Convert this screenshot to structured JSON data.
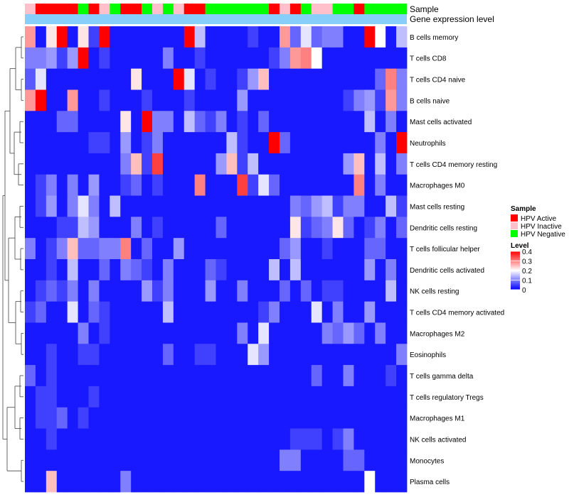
{
  "chart_data": {
    "type": "heatmap",
    "annotation_titles": [
      "Sample",
      "Gene expression level"
    ],
    "rows": [
      "B cells memory",
      "T cells CD8",
      "T cells CD4 naive",
      "B cells naive",
      "Mast cells activated",
      "Neutrophils",
      "T cells CD4 memory resting",
      "Macrophages M0",
      "Mast cells resting",
      "Dendritic cells resting",
      "T cells follicular helper",
      "Dendritic cells activated",
      "NK cells resting",
      "T cells CD4 memory activated",
      "Macrophages M2",
      "Eosinophils",
      "T cells gamma delta",
      "T cells regulatory  Tregs",
      "Macrophages M1",
      "NK cells activated",
      "Monocytes",
      "Plasma cells"
    ],
    "sample_groups": [
      "HPV Inactive",
      "HPV Active",
      "HPV Active",
      "HPV Active",
      "HPV Active",
      "HPV Negative",
      "HPV Active",
      "HPV Inactive",
      "HPV Negative",
      "HPV Active",
      "HPV Active",
      "HPV Negative",
      "HPV Inactive",
      "HPV Negative",
      "HPV Inactive",
      "HPV Active",
      "HPV Active",
      "HPV Negative",
      "HPV Negative",
      "HPV Negative",
      "HPV Negative",
      "HPV Negative",
      "HPV Negative",
      "HPV Active",
      "HPV Inactive",
      "HPV Active",
      "HPV Negative",
      "HPV Inactive",
      "HPV Inactive",
      "HPV Negative",
      "HPV Negative",
      "HPV Active",
      "HPV Negative",
      "HPV Negative",
      "HPV Negative",
      "HPV Negative"
    ],
    "values": [
      [
        0.28,
        0.02,
        0.22,
        0.4,
        0.02,
        0.22,
        0.05,
        0.4,
        0.02,
        0.02,
        0.02,
        0.02,
        0.02,
        0.02,
        0.02,
        0.4,
        0.15,
        0.02,
        0.02,
        0.02,
        0.02,
        0.05,
        0.02,
        0.02,
        0.28,
        0.08,
        0.18,
        0.08,
        0.1,
        0.1,
        0.02,
        0.02,
        0.4,
        0.2,
        0.02,
        0.15
      ],
      [
        0.1,
        0.1,
        0.12,
        0.05,
        0.12,
        0.4,
        0.02,
        0.05,
        0.02,
        0.02,
        0.02,
        0.02,
        0.02,
        0.1,
        0.02,
        0.02,
        0.05,
        0.02,
        0.02,
        0.02,
        0.02,
        0.02,
        0.02,
        0.05,
        0.1,
        0.28,
        0.3,
        0.2,
        0.02,
        0.02,
        0.02,
        0.02,
        0.02,
        0.02,
        0.02,
        0.02
      ],
      [
        0.07,
        0.18,
        0.02,
        0.02,
        0.02,
        0.02,
        0.02,
        0.02,
        0.02,
        0.02,
        0.22,
        0.02,
        0.02,
        0.02,
        0.4,
        0.18,
        0.02,
        0.05,
        0.02,
        0.02,
        0.05,
        0.12,
        0.25,
        0.02,
        0.02,
        0.02,
        0.02,
        0.02,
        0.02,
        0.02,
        0.02,
        0.02,
        0.02,
        0.08,
        0.3,
        0.1
      ],
      [
        0.28,
        0.4,
        0.02,
        0.02,
        0.28,
        0.02,
        0.02,
        0.05,
        0.02,
        0.02,
        0.02,
        0.05,
        0.02,
        0.02,
        0.02,
        0.05,
        0.02,
        0.02,
        0.02,
        0.02,
        0.12,
        0.02,
        0.02,
        0.02,
        0.02,
        0.02,
        0.02,
        0.02,
        0.02,
        0.02,
        0.05,
        0.1,
        0.12,
        0.05,
        0.28,
        0.1
      ],
      [
        0.02,
        0.02,
        0.02,
        0.08,
        0.08,
        0.02,
        0.02,
        0.02,
        0.02,
        0.22,
        0.02,
        0.4,
        0.1,
        0.1,
        0.02,
        0.15,
        0.08,
        0.05,
        0.1,
        0.02,
        0.05,
        0.02,
        0.08,
        0.02,
        0.02,
        0.02,
        0.02,
        0.02,
        0.02,
        0.02,
        0.02,
        0.02,
        0.15,
        0.02,
        0.1,
        0.02
      ],
      [
        0.02,
        0.02,
        0.02,
        0.02,
        0.02,
        0.02,
        0.05,
        0.05,
        0.02,
        0.12,
        0.02,
        0.05,
        0.1,
        0.02,
        0.02,
        0.02,
        0.02,
        0.02,
        0.02,
        0.15,
        0.05,
        0.02,
        0.02,
        0.4,
        0.08,
        0.02,
        0.02,
        0.02,
        0.02,
        0.02,
        0.02,
        0.02,
        0.02,
        0.1,
        0.02,
        0.4
      ],
      [
        0.02,
        0.02,
        0.02,
        0.02,
        0.02,
        0.02,
        0.02,
        0.02,
        0.02,
        0.1,
        0.25,
        0.05,
        0.35,
        0.02,
        0.02,
        0.02,
        0.02,
        0.02,
        0.12,
        0.25,
        0.05,
        0.15,
        0.02,
        0.02,
        0.02,
        0.02,
        0.02,
        0.02,
        0.02,
        0.02,
        0.12,
        0.25,
        0.02,
        0.15,
        0.02,
        0.1
      ],
      [
        0.02,
        0.05,
        0.1,
        0.02,
        0.1,
        0.02,
        0.12,
        0.02,
        0.02,
        0.05,
        0.08,
        0.02,
        0.05,
        0.02,
        0.02,
        0.02,
        0.3,
        0.02,
        0.02,
        0.02,
        0.35,
        0.05,
        0.18,
        0.08,
        0.02,
        0.02,
        0.02,
        0.02,
        0.02,
        0.02,
        0.02,
        0.3,
        0.02,
        0.1,
        0.02,
        0.02
      ],
      [
        0.02,
        0.05,
        0.12,
        0.02,
        0.1,
        0.18,
        0.1,
        0.02,
        0.15,
        0.02,
        0.02,
        0.02,
        0.02,
        0.02,
        0.02,
        0.02,
        0.02,
        0.02,
        0.02,
        0.02,
        0.02,
        0.02,
        0.02,
        0.02,
        0.02,
        0.1,
        0.08,
        0.12,
        0.15,
        0.05,
        0.1,
        0.1,
        0.02,
        0.02,
        0.15,
        0.05
      ],
      [
        0.02,
        0.02,
        0.02,
        0.05,
        0.05,
        0.15,
        0.12,
        0.02,
        0.02,
        0.02,
        0.1,
        0.02,
        0.05,
        0.02,
        0.02,
        0.02,
        0.02,
        0.02,
        0.08,
        0.02,
        0.02,
        0.02,
        0.02,
        0.02,
        0.02,
        0.22,
        0.05,
        0.08,
        0.1,
        0.22,
        0.08,
        0.02,
        0.05,
        0.1,
        0.02,
        0.08
      ],
      [
        0.1,
        0.02,
        0.05,
        0.1,
        0.25,
        0.08,
        0.08,
        0.1,
        0.1,
        0.3,
        0.02,
        0.08,
        0.02,
        0.02,
        0.12,
        0.02,
        0.02,
        0.02,
        0.02,
        0.02,
        0.02,
        0.02,
        0.02,
        0.02,
        0.08,
        0.12,
        0.02,
        0.02,
        0.05,
        0.02,
        0.02,
        0.02,
        0.08,
        0.08,
        0.02,
        0.02
      ],
      [
        0.02,
        0.02,
        0.05,
        0.02,
        0.15,
        0.02,
        0.02,
        0.08,
        0.02,
        0.1,
        0.08,
        0.05,
        0.02,
        0.1,
        0.02,
        0.02,
        0.02,
        0.08,
        0.05,
        0.02,
        0.02,
        0.02,
        0.02,
        0.15,
        0.02,
        0.15,
        0.02,
        0.02,
        0.02,
        0.02,
        0.02,
        0.02,
        0.12,
        0.02,
        0.1,
        0.02
      ],
      [
        0.02,
        0.05,
        0.08,
        0.05,
        0.1,
        0.02,
        0.1,
        0.02,
        0.02,
        0.02,
        0.02,
        0.12,
        0.05,
        0.1,
        0.02,
        0.02,
        0.02,
        0.12,
        0.02,
        0.02,
        0.1,
        0.02,
        0.02,
        0.02,
        0.08,
        0.02,
        0.08,
        0.02,
        0.05,
        0.05,
        0.02,
        0.02,
        0.02,
        0.02,
        0.15,
        0.02
      ],
      [
        0.05,
        0.08,
        0.02,
        0.02,
        0.18,
        0.02,
        0.08,
        0.05,
        0.02,
        0.02,
        0.02,
        0.02,
        0.02,
        0.15,
        0.02,
        0.02,
        0.02,
        0.02,
        0.02,
        0.02,
        0.02,
        0.02,
        0.05,
        0.1,
        0.02,
        0.02,
        0.02,
        0.18,
        0.02,
        0.1,
        0.02,
        0.02,
        0.12,
        0.02,
        0.02,
        0.02
      ],
      [
        0.02,
        0.02,
        0.02,
        0.02,
        0.02,
        0.1,
        0.02,
        0.05,
        0.02,
        0.02,
        0.02,
        0.02,
        0.02,
        0.02,
        0.02,
        0.02,
        0.02,
        0.02,
        0.02,
        0.02,
        0.1,
        0.02,
        0.18,
        0.02,
        0.02,
        0.02,
        0.02,
        0.02,
        0.1,
        0.08,
        0.12,
        0.08,
        0.02,
        0.1,
        0.02,
        0.02
      ],
      [
        0.02,
        0.02,
        0.05,
        0.02,
        0.02,
        0.05,
        0.05,
        0.02,
        0.02,
        0.02,
        0.02,
        0.02,
        0.02,
        0.08,
        0.02,
        0.02,
        0.05,
        0.05,
        0.02,
        0.02,
        0.02,
        0.18,
        0.12,
        0.02,
        0.02,
        0.02,
        0.02,
        0.02,
        0.02,
        0.02,
        0.02,
        0.02,
        0.02,
        0.02,
        0.02,
        0.1
      ],
      [
        0.08,
        0.02,
        0.05,
        0.02,
        0.02,
        0.02,
        0.02,
        0.02,
        0.02,
        0.02,
        0.02,
        0.02,
        0.02,
        0.02,
        0.02,
        0.02,
        0.02,
        0.02,
        0.02,
        0.02,
        0.02,
        0.02,
        0.02,
        0.02,
        0.02,
        0.02,
        0.02,
        0.08,
        0.02,
        0.02,
        0.1,
        0.02,
        0.02,
        0.02,
        0.05,
        0.02
      ],
      [
        0.02,
        0.05,
        0.05,
        0.02,
        0.02,
        0.02,
        0.05,
        0.02,
        0.02,
        0.02,
        0.02,
        0.02,
        0.02,
        0.02,
        0.02,
        0.02,
        0.02,
        0.02,
        0.02,
        0.02,
        0.02,
        0.02,
        0.02,
        0.02,
        0.02,
        0.02,
        0.02,
        0.02,
        0.02,
        0.02,
        0.02,
        0.02,
        0.02,
        0.02,
        0.02,
        0.02
      ],
      [
        0.02,
        0.05,
        0.05,
        0.08,
        0.02,
        0.05,
        0.02,
        0.02,
        0.02,
        0.02,
        0.02,
        0.02,
        0.02,
        0.02,
        0.02,
        0.02,
        0.02,
        0.02,
        0.02,
        0.02,
        0.02,
        0.02,
        0.02,
        0.02,
        0.02,
        0.02,
        0.02,
        0.02,
        0.02,
        0.02,
        0.02,
        0.02,
        0.02,
        0.02,
        0.02,
        0.02
      ],
      [
        0.02,
        0.02,
        0.05,
        0.02,
        0.02,
        0.02,
        0.02,
        0.02,
        0.02,
        0.02,
        0.02,
        0.02,
        0.02,
        0.02,
        0.02,
        0.02,
        0.02,
        0.02,
        0.02,
        0.02,
        0.02,
        0.02,
        0.02,
        0.02,
        0.02,
        0.05,
        0.05,
        0.05,
        0.02,
        0.05,
        0.1,
        0.02,
        0.02,
        0.02,
        0.02,
        0.02
      ],
      [
        0.02,
        0.02,
        0.02,
        0.02,
        0.02,
        0.02,
        0.02,
        0.02,
        0.02,
        0.02,
        0.02,
        0.02,
        0.02,
        0.02,
        0.02,
        0.02,
        0.02,
        0.02,
        0.02,
        0.02,
        0.02,
        0.02,
        0.02,
        0.02,
        0.1,
        0.1,
        0.02,
        0.02,
        0.02,
        0.02,
        0.08,
        0.08,
        0.02,
        0.02,
        0.02,
        0.02
      ],
      [
        0.02,
        0.02,
        0.25,
        0.02,
        0.02,
        0.02,
        0.02,
        0.02,
        0.02,
        0.1,
        0.02,
        0.02,
        0.02,
        0.02,
        0.02,
        0.02,
        0.02,
        0.02,
        0.02,
        0.02,
        0.02,
        0.02,
        0.02,
        0.02,
        0.02,
        0.02,
        0.02,
        0.02,
        0.02,
        0.02,
        0.02,
        0.02,
        0.2,
        0.02,
        0.02,
        0.02
      ]
    ],
    "legend": {
      "sample": {
        "title": "Sample",
        "items": [
          {
            "label": "HPV Active",
            "color": "#ff0000"
          },
          {
            "label": "HPV Inactive",
            "color": "#ffc0cb"
          },
          {
            "label": "HPV Negative",
            "color": "#00ff00"
          }
        ]
      },
      "level": {
        "title": "Level",
        "min": 0,
        "max": 0.4,
        "ticks": [
          "0.4",
          "0.3",
          "0.2",
          "0.1",
          "0"
        ]
      }
    }
  },
  "colors": {
    "low": "#0000ff",
    "mid": "#ffffff",
    "high": "#ff0000",
    "gene_expression_bar": "#87cefa"
  }
}
